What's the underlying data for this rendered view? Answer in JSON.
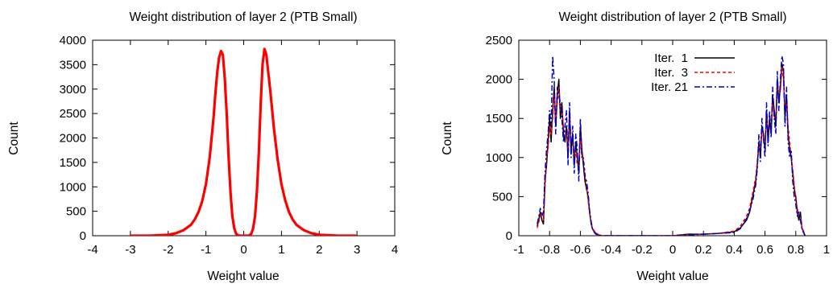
{
  "chart_data": [
    {
      "type": "line",
      "title": "Weight distribution of layer 2 (PTB Small)",
      "xlabel": "Weight value",
      "ylabel": "Count",
      "xlim": [
        -4,
        4
      ],
      "ylim": [
        0,
        4000
      ],
      "xticks": [
        "-4",
        "-3",
        "-2",
        "-1",
        "0",
        "1",
        "2",
        "3",
        "4"
      ],
      "yticks": [
        "0",
        "500",
        "1000",
        "1500",
        "2000",
        "2500",
        "3000",
        "3500",
        "4000"
      ],
      "grid": false,
      "series": [
        {
          "color": "#ff0000",
          "x": [
            -3.0,
            -2.5,
            -2.0,
            -1.8,
            -1.6,
            -1.4,
            -1.3,
            -1.2,
            -1.1,
            -1.0,
            -0.9,
            -0.8,
            -0.75,
            -0.7,
            -0.65,
            -0.6,
            -0.55,
            -0.5,
            -0.45,
            -0.4,
            -0.35,
            -0.3,
            -0.25,
            -0.2,
            -0.15,
            -0.1,
            -0.05,
            0.0,
            0.05,
            0.1,
            0.15,
            0.2,
            0.25,
            0.3,
            0.35,
            0.4,
            0.45,
            0.5,
            0.55,
            0.6,
            0.7,
            0.8,
            0.9,
            1.0,
            1.1,
            1.2,
            1.3,
            1.4,
            1.6,
            1.8,
            2.0,
            2.5,
            3.0
          ],
          "y": [
            0,
            0,
            20,
            50,
            110,
            220,
            330,
            480,
            700,
            1050,
            1600,
            2400,
            2900,
            3350,
            3650,
            3780,
            3700,
            3200,
            2500,
            1600,
            900,
            400,
            150,
            40,
            10,
            0,
            0,
            0,
            0,
            0,
            10,
            40,
            150,
            400,
            900,
            1700,
            2700,
            3500,
            3820,
            3700,
            3000,
            2200,
            1550,
            1050,
            720,
            480,
            330,
            220,
            110,
            50,
            20,
            0,
            0
          ]
        }
      ]
    },
    {
      "type": "line",
      "title": "Weight distribution of layer 2 (PTB Small)",
      "xlabel": "Weight value",
      "ylabel": "Count",
      "xlim": [
        -1,
        1
      ],
      "ylim": [
        0,
        2500
      ],
      "xticks": [
        "-1",
        "-0.8",
        "-0.6",
        "-0.4",
        "-0.2",
        "0",
        "0.2",
        "0.4",
        "0.6",
        "0.8",
        "1"
      ],
      "yticks": [
        "0",
        "500",
        "1000",
        "1500",
        "2000",
        "2500"
      ],
      "grid": false,
      "legend": "top-right",
      "series": [
        {
          "name": "Iter.  1",
          "color": "#000000",
          "dash": "solid",
          "x": [
            -0.88,
            -0.86,
            -0.85,
            -0.84,
            -0.83,
            -0.82,
            -0.81,
            -0.8,
            -0.79,
            -0.78,
            -0.77,
            -0.76,
            -0.75,
            -0.74,
            -0.73,
            -0.72,
            -0.71,
            -0.7,
            -0.69,
            -0.68,
            -0.67,
            -0.66,
            -0.65,
            -0.64,
            -0.63,
            -0.62,
            -0.61,
            -0.6,
            -0.59,
            -0.58,
            -0.57,
            -0.56,
            -0.55,
            -0.54,
            -0.53,
            -0.52,
            -0.5,
            -0.48,
            -0.46,
            -0.44,
            -0.4,
            -0.3,
            -0.2,
            -0.1,
            0.0,
            0.1,
            0.2,
            0.3,
            0.4,
            0.44,
            0.48,
            0.5,
            0.52,
            0.54,
            0.55,
            0.56,
            0.57,
            0.58,
            0.59,
            0.6,
            0.61,
            0.62,
            0.63,
            0.64,
            0.65,
            0.66,
            0.67,
            0.68,
            0.69,
            0.7,
            0.71,
            0.72,
            0.73,
            0.74,
            0.75,
            0.76,
            0.77,
            0.78,
            0.79,
            0.8,
            0.81,
            0.82,
            0.83,
            0.84,
            0.85,
            0.86
          ],
          "y": [
            120,
            300,
            200,
            150,
            700,
            900,
            1200,
            1500,
            1200,
            1600,
            1900,
            1400,
            1800,
            2000,
            1500,
            1700,
            1300,
            1200,
            1400,
            1000,
            1600,
            1100,
            1300,
            900,
            1200,
            1000,
            800,
            1400,
            1100,
            900,
            700,
            600,
            500,
            300,
            150,
            80,
            30,
            10,
            0,
            0,
            0,
            0,
            0,
            0,
            0,
            20,
            20,
            30,
            50,
            100,
            200,
            300,
            500,
            700,
            900,
            1200,
            1000,
            1400,
            1300,
            1100,
            1600,
            1200,
            1500,
            1300,
            1800,
            1600,
            1400,
            2000,
            1700,
            1900,
            2200,
            2100,
            1500,
            1800,
            1300,
            1100,
            1000,
            800,
            600,
            500,
            300,
            200,
            300,
            100,
            50,
            0
          ]
        },
        {
          "name": "Iter.  3",
          "color": "#ff0000",
          "dash": "dashed",
          "x": [
            -0.88,
            -0.86,
            -0.85,
            -0.84,
            -0.83,
            -0.82,
            -0.81,
            -0.8,
            -0.79,
            -0.78,
            -0.77,
            -0.76,
            -0.75,
            -0.74,
            -0.73,
            -0.72,
            -0.71,
            -0.7,
            -0.69,
            -0.68,
            -0.67,
            -0.66,
            -0.65,
            -0.64,
            -0.63,
            -0.62,
            -0.61,
            -0.6,
            -0.59,
            -0.58,
            -0.57,
            -0.56,
            -0.55,
            -0.54,
            -0.53,
            -0.52,
            -0.5,
            -0.48,
            -0.46,
            -0.44,
            -0.4,
            -0.3,
            -0.2,
            -0.1,
            0.0,
            0.1,
            0.2,
            0.3,
            0.4,
            0.44,
            0.48,
            0.5,
            0.52,
            0.54,
            0.55,
            0.56,
            0.57,
            0.58,
            0.59,
            0.6,
            0.61,
            0.62,
            0.63,
            0.64,
            0.65,
            0.66,
            0.67,
            0.68,
            0.69,
            0.7,
            0.71,
            0.72,
            0.73,
            0.74,
            0.75,
            0.76,
            0.77,
            0.78,
            0.79,
            0.8,
            0.81,
            0.82,
            0.83,
            0.84,
            0.85,
            0.86
          ],
          "y": [
            100,
            250,
            300,
            200,
            600,
            1000,
            1100,
            1400,
            1300,
            1500,
            1800,
            1500,
            1700,
            1900,
            1600,
            1600,
            1400,
            1300,
            1300,
            1100,
            1500,
            1200,
            1200,
            1000,
            1100,
            900,
            900,
            1300,
            1000,
            1000,
            800,
            650,
            450,
            280,
            160,
            90,
            40,
            10,
            0,
            0,
            0,
            0,
            0,
            0,
            0,
            10,
            20,
            30,
            60,
            120,
            250,
            350,
            550,
            750,
            950,
            1150,
            1100,
            1350,
            1250,
            1200,
            1500,
            1300,
            1400,
            1400,
            1700,
            1500,
            1500,
            1900,
            1800,
            1850,
            2150,
            2000,
            1600,
            1700,
            1400,
            1200,
            1000,
            850,
            650,
            450,
            350,
            250,
            250,
            120,
            60,
            0
          ]
        },
        {
          "name": "Iter. 21",
          "color": "#0000cc",
          "dash": "dashdot",
          "x": [
            -0.88,
            -0.86,
            -0.85,
            -0.84,
            -0.83,
            -0.82,
            -0.81,
            -0.8,
            -0.79,
            -0.78,
            -0.77,
            -0.76,
            -0.75,
            -0.74,
            -0.73,
            -0.72,
            -0.71,
            -0.7,
            -0.69,
            -0.68,
            -0.67,
            -0.66,
            -0.65,
            -0.64,
            -0.63,
            -0.62,
            -0.61,
            -0.6,
            -0.59,
            -0.58,
            -0.57,
            -0.56,
            -0.55,
            -0.54,
            -0.53,
            -0.52,
            -0.5,
            -0.48,
            -0.46,
            -0.44,
            -0.4,
            -0.3,
            -0.2,
            -0.1,
            0.0,
            0.1,
            0.2,
            0.3,
            0.4,
            0.44,
            0.48,
            0.5,
            0.52,
            0.54,
            0.55,
            0.56,
            0.57,
            0.58,
            0.59,
            0.6,
            0.61,
            0.62,
            0.63,
            0.64,
            0.65,
            0.66,
            0.67,
            0.68,
            0.69,
            0.7,
            0.71,
            0.72,
            0.73,
            0.74,
            0.75,
            0.76,
            0.77,
            0.78,
            0.79,
            0.8,
            0.81,
            0.82,
            0.83,
            0.84,
            0.85,
            0.86
          ],
          "y": [
            150,
            350,
            250,
            300,
            800,
            1100,
            1300,
            1600,
            1400,
            2300,
            2000,
            1300,
            1900,
            1800,
            1700,
            1500,
            1200,
            1400,
            1600,
            900,
            1700,
            1000,
            1400,
            800,
            1300,
            1100,
            700,
            1500,
            1000,
            950,
            750,
            700,
            550,
            320,
            180,
            70,
            20,
            10,
            0,
            0,
            0,
            0,
            0,
            0,
            0,
            10,
            20,
            30,
            40,
            90,
            220,
            320,
            450,
            650,
            850,
            1300,
            950,
            1500,
            1250,
            1000,
            1700,
            1150,
            1600,
            1250,
            1900,
            1500,
            1300,
            2100,
            1600,
            2000,
            2300,
            2200,
            1400,
            1900,
            1200,
            1000,
            1100,
            700,
            500,
            400,
            250,
            300,
            200,
            90,
            40,
            0
          ]
        }
      ]
    }
  ]
}
